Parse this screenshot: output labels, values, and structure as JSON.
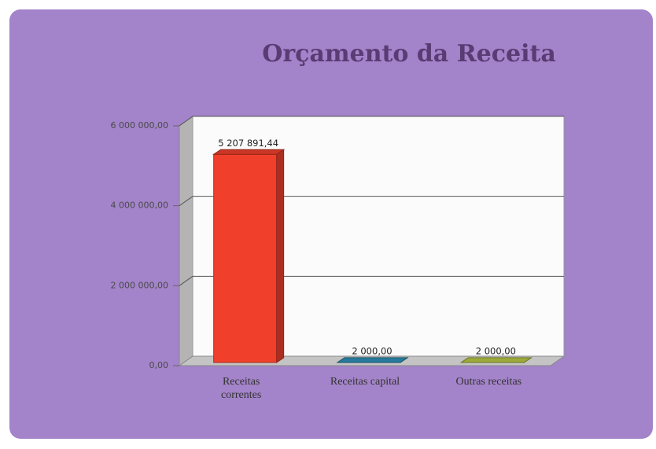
{
  "chart_data": {
    "type": "bar3d",
    "title": "Orçamento da Receita",
    "categories": [
      "Receitas correntes",
      "Receitas capital",
      "Outras receitas"
    ],
    "values": [
      5207891.44,
      2000,
      2000
    ],
    "value_labels": [
      "5 207 891,44",
      "2 000,00",
      "2 000,00"
    ],
    "colors": [
      "#f0402c",
      "#2f8fb8",
      "#b9c844"
    ],
    "ylim": [
      0,
      6000000
    ],
    "yticks": [
      {
        "value": 0,
        "label": "0,00"
      },
      {
        "value": 2000000,
        "label": "2 000 000,00"
      },
      {
        "value": 4000000,
        "label": "4 000 000,00"
      },
      {
        "value": 6000000,
        "label": "6 000 000,00"
      }
    ],
    "grid": true
  }
}
